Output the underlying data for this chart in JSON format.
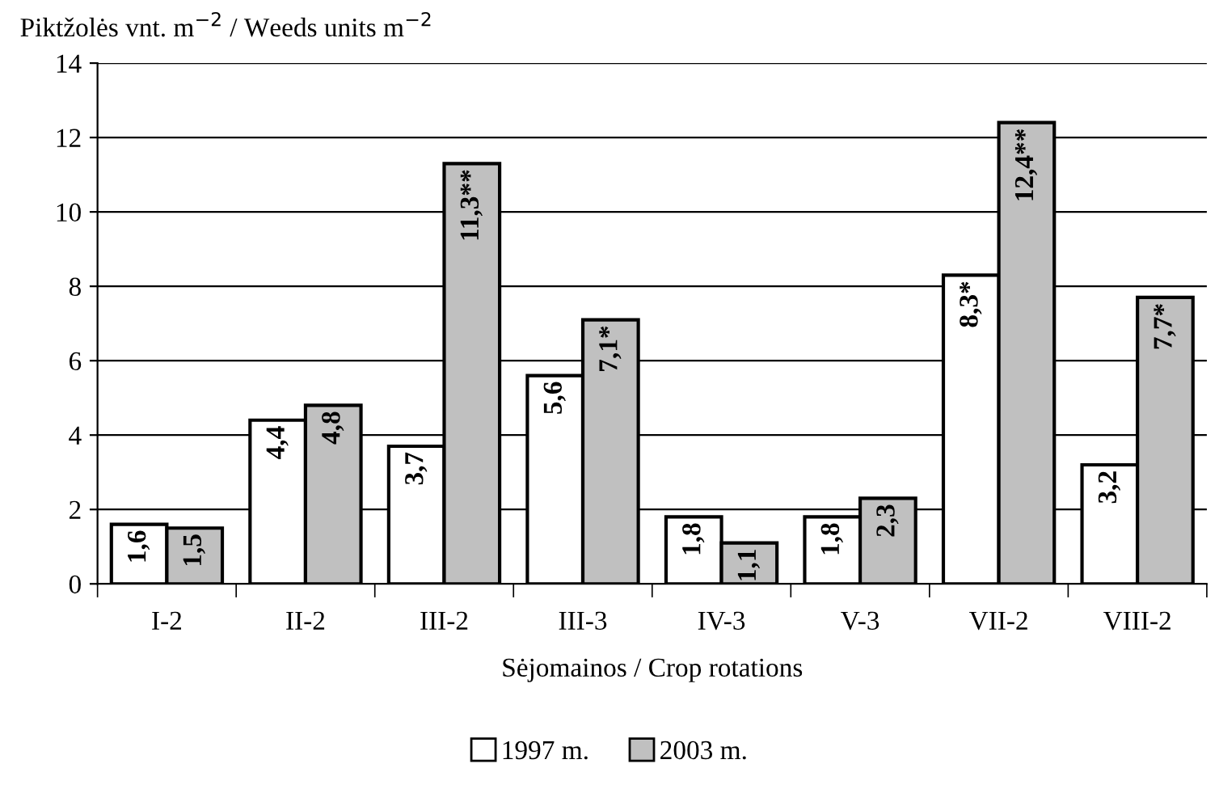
{
  "chart_data": {
    "type": "bar",
    "ylabel": "Piktžolės vnt. m$^{−2}$ / Weeds units m$^{−2}$",
    "xlabel": "Sėjomainos / Crop rotations",
    "categories": [
      "I-2",
      "II-2",
      "III-2",
      "III-3",
      "IV-3",
      "V-3",
      "VII-2",
      "VIII-2"
    ],
    "series": [
      {
        "name": "1997 m.",
        "color": "#ffffff",
        "values": [
          1.6,
          4.4,
          3.7,
          5.6,
          1.8,
          1.8,
          8.3,
          3.2
        ],
        "value_labels": [
          "1,6",
          "4,4",
          "3,7",
          "5,6",
          "1,8",
          "1,8",
          "8,3*",
          "3,2"
        ]
      },
      {
        "name": "2003 m.",
        "color": "#c0c0c0",
        "values": [
          1.5,
          4.8,
          11.3,
          7.1,
          1.1,
          2.3,
          12.4,
          7.7
        ],
        "value_labels": [
          "1,5",
          "4,8",
          "11,3**",
          "7,1*",
          "1,1",
          "2,3",
          "12,4**",
          "7,7*"
        ]
      }
    ],
    "ylim": [
      0,
      14
    ],
    "yticks": [
      0,
      2,
      4,
      6,
      8,
      10,
      12,
      14
    ],
    "grid": "y",
    "legend": "bottom"
  }
}
